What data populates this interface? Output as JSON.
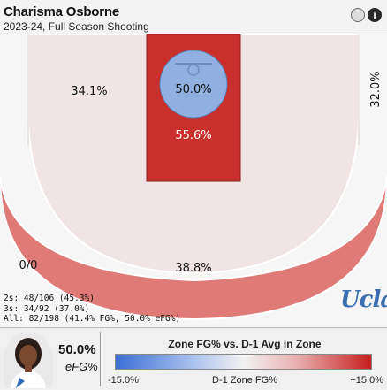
{
  "header": {
    "player_name": "Charisma Osborne",
    "subtitle": "2023-24, Full Season Shooting",
    "toggle_icon": "toggle-circle-icon",
    "info_icon": "info-icon",
    "info_glyph": "i"
  },
  "zones": {
    "restricted_area": "50.0%",
    "paint": "55.6%",
    "midrange_left": "34.1%",
    "midrange_right": "32.0%",
    "corner_three_left": "0/0",
    "above_break_three": "38.8%"
  },
  "stats": {
    "twos": "2s: 48/106 (45.3%)",
    "threes": "3s: 34/92 (37.0%)",
    "all": "All: 82/198 (41.4% FG%, 50.0% eFG%)"
  },
  "logo": {
    "text": "Ucla"
  },
  "footer": {
    "efg_value": "50.0%",
    "efg_label": "eFG%",
    "avatar_icon": "player-headshot"
  },
  "legend": {
    "title": "Zone FG% vs. D-1 Avg in Zone",
    "min_label": "-15.0%",
    "mid_label": "D-1 Zone FG%",
    "max_label": "+15.0%"
  },
  "colors": {
    "hot": "#c9302c",
    "warm": "#e07a76",
    "cool": "#8fb0e0",
    "neutral": "#f0e4e4"
  }
}
